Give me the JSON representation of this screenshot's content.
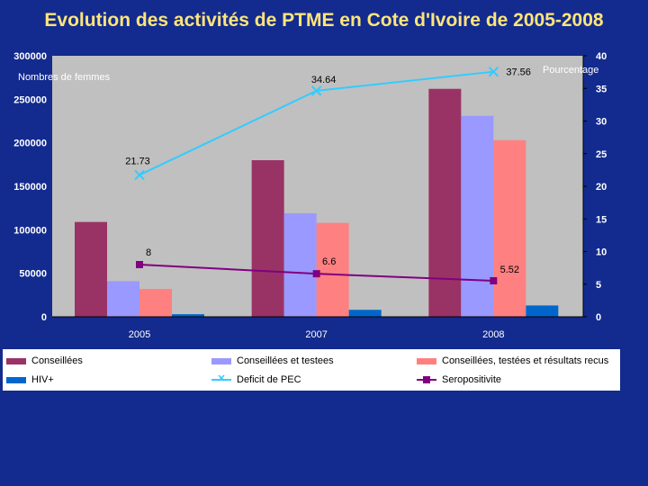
{
  "chart_data": {
    "title": "Evolution des activités de PTME en Cote d'Ivoire de 2005-2008",
    "type": "bar",
    "categories": [
      "2005",
      "2007",
      "2008"
    ],
    "ylabel_left": "Nombres de femmes",
    "ylabel_right": "Pourcentage",
    "ylim_left": [
      0,
      300000
    ],
    "ylim_right": [
      0,
      40
    ],
    "left_ticks": [
      "0",
      "50000",
      "100000",
      "150000",
      "200000",
      "250000",
      "300000"
    ],
    "right_ticks": [
      "0",
      "5",
      "10",
      "15",
      "20",
      "25",
      "30",
      "35",
      "40"
    ],
    "bar_series": [
      {
        "name": "Conseillées",
        "color": "#993366",
        "values": [
          109000,
          180000,
          262000
        ]
      },
      {
        "name": "Conseillées et testees",
        "color": "#9999ff",
        "values": [
          41000,
          119000,
          231000
        ]
      },
      {
        "name": "Conseillées, testées et résultats recus",
        "color": "#ff8080",
        "values": [
          32000,
          108000,
          203000
        ]
      },
      {
        "name": "HIV+",
        "color": "#0066cc",
        "values": [
          3000,
          8000,
          13000
        ]
      }
    ],
    "line_series": [
      {
        "name": "Deficit de PEC",
        "color": "#33ccff",
        "marker": "x",
        "values": [
          21.73,
          34.64,
          37.56
        ],
        "labels": [
          "21.73",
          "34.64",
          "37.56"
        ]
      },
      {
        "name": "Seropositivite",
        "color": "#800080",
        "marker": "square",
        "values": [
          8,
          6.6,
          5.52
        ],
        "labels": [
          "8",
          "6.6",
          "5.52"
        ]
      }
    ]
  },
  "legend": [
    {
      "label": "Conseillées",
      "color": "#993366",
      "kind": "bar"
    },
    {
      "label": "Conseillées et testees",
      "color": "#9999ff",
      "kind": "bar"
    },
    {
      "label": "Conseillées, testées et résultats recus",
      "color": "#ff8080",
      "kind": "bar"
    },
    {
      "label": "HIV+",
      "color": "#0066cc",
      "kind": "bar"
    },
    {
      "label": "Deficit de PEC",
      "color": "#33ccff",
      "kind": "line-x"
    },
    {
      "label": "Seropositivite",
      "color": "#800080",
      "kind": "line-square"
    }
  ]
}
